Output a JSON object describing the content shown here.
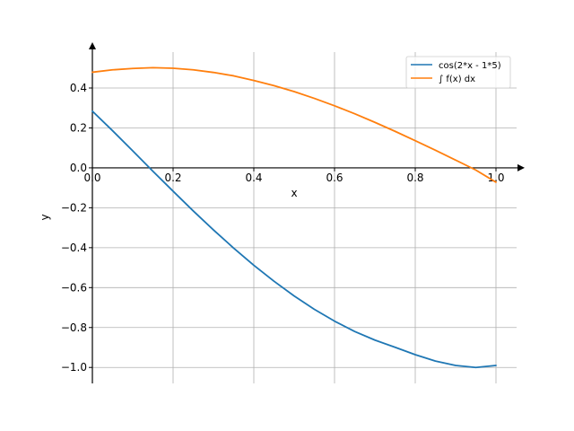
{
  "chart_data": {
    "type": "line",
    "xlabel": "x",
    "ylabel": "y",
    "xlim": [
      0.0,
      1.0
    ],
    "ylim": [
      -1.08,
      0.58
    ],
    "grid": true,
    "legend_position": "top-right",
    "x_ticks": [
      {
        "value": 0.0,
        "label": "0.0"
      },
      {
        "value": 0.2,
        "label": "0.2"
      },
      {
        "value": 0.4,
        "label": "0.4"
      },
      {
        "value": 0.6,
        "label": "0.6"
      },
      {
        "value": 0.8,
        "label": "0.8"
      },
      {
        "value": 1.0,
        "label": "1.0"
      }
    ],
    "y_ticks": [
      {
        "value": 0.4,
        "label": "0.4"
      },
      {
        "value": 0.2,
        "label": "0.2"
      },
      {
        "value": 0.0,
        "label": "0.0"
      },
      {
        "value": -0.2,
        "label": "−0.2"
      },
      {
        "value": -0.4,
        "label": "−0.4"
      },
      {
        "value": -0.6,
        "label": "−0.6"
      },
      {
        "value": -0.8,
        "label": "−0.8"
      },
      {
        "value": -1.0,
        "label": "−1.0"
      }
    ],
    "x": [
      0.0,
      0.05,
      0.1,
      0.15,
      0.2,
      0.25,
      0.3,
      0.35,
      0.4,
      0.45,
      0.5,
      0.55,
      0.6,
      0.65,
      0.7,
      0.75,
      0.8,
      0.85,
      0.9,
      0.95,
      1.0
    ],
    "series": [
      {
        "name": "cos(2*x - 1*5)",
        "color": "#1f77b4",
        "values": [
          0.284,
          0.186,
          0.085,
          -0.017,
          -0.117,
          -0.216,
          -0.311,
          -0.402,
          -0.488,
          -0.568,
          -0.642,
          -0.709,
          -0.768,
          -0.82,
          -0.863,
          -0.899,
          -0.936,
          -0.968,
          -0.99,
          -1.0,
          -0.99
        ]
      },
      {
        "name": "∫ f(x) dx",
        "color": "#ff7f0e",
        "values": [
          0.479,
          0.491,
          0.498,
          0.502,
          0.499,
          0.491,
          0.478,
          0.461,
          0.438,
          0.412,
          0.382,
          0.348,
          0.311,
          0.271,
          0.228,
          0.183,
          0.136,
          0.088,
          0.039,
          -0.011,
          -0.072
        ]
      }
    ]
  }
}
